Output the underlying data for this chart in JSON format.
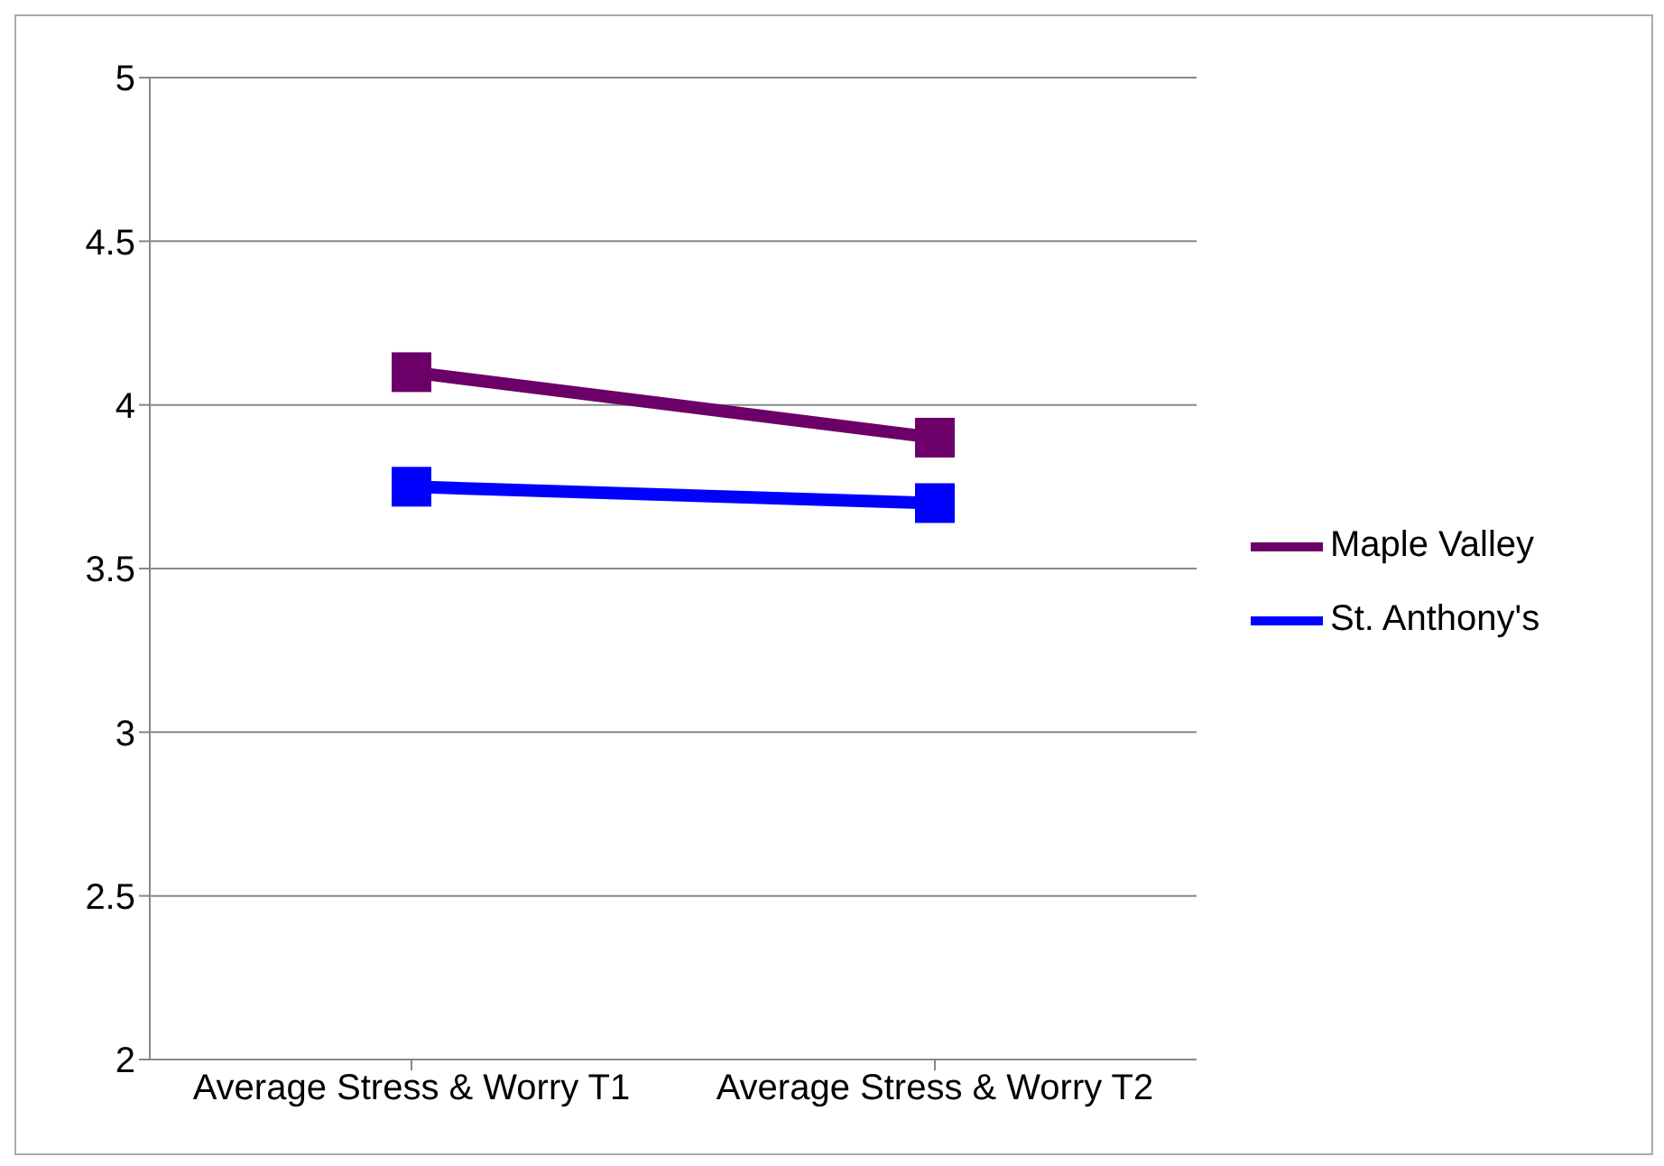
{
  "chart_data": {
    "type": "line",
    "categories": [
      "Average Stress & Worry T1",
      "Average Stress & Worry T2"
    ],
    "series": [
      {
        "name": "Maple Valley",
        "color": "#6b0068",
        "values": [
          4.1,
          3.9
        ]
      },
      {
        "name": "St. Anthony's",
        "color": "#0000ff",
        "values": [
          3.75,
          3.7
        ]
      }
    ],
    "ylim": [
      2,
      5
    ],
    "yticks": [
      2,
      2.5,
      3,
      3.5,
      4,
      4.5,
      5
    ],
    "grid": "y",
    "legend": "right",
    "marker": "square",
    "line_style": "solid"
  }
}
